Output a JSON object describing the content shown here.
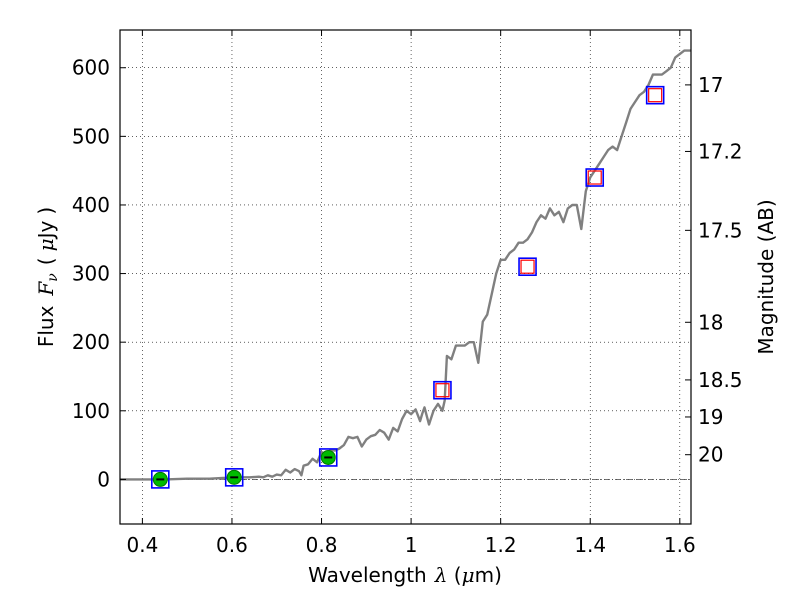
{
  "chart_data": {
    "type": "line",
    "xlabel": {
      "prefix": "Wavelength",
      "symbol": "λ",
      "open": " (",
      "unit": "μ",
      "unit_rest": "m)"
    },
    "ylabel": {
      "prefix": "Flux",
      "symbol": "F",
      "sub": "ν",
      "open": "(",
      "unit": "μ",
      "unit_rest": "Jy",
      "close": ")"
    },
    "y2label": "Magnitude (AB)",
    "xlim": [
      0.35,
      1.625
    ],
    "ylim": [
      -65,
      655
    ],
    "x_ticks": [
      0.4,
      0.6,
      0.8,
      1.0,
      1.2,
      1.4,
      1.6
    ],
    "x_tick_labels": [
      "0.4",
      "0.6",
      "0.8",
      "1",
      "1.2",
      "1.4",
      "1.6"
    ],
    "y_ticks": [
      0,
      100,
      200,
      300,
      400,
      500,
      600
    ],
    "y_tick_labels": [
      "0",
      "100",
      "200",
      "300",
      "400",
      "500",
      "600"
    ],
    "mag_ticks": [
      {
        "label": "17",
        "flux": 575
      },
      {
        "label": "17.2",
        "flux": 478
      },
      {
        "label": "17.5",
        "flux": 363
      },
      {
        "label": "18",
        "flux": 229
      },
      {
        "label": "18.5",
        "flux": 145
      },
      {
        "label": "19",
        "flux": 91
      },
      {
        "label": "20",
        "flux": 36
      }
    ],
    "grid": true,
    "zero_line": true,
    "series": [
      {
        "name": "spectrum",
        "color": "#808080",
        "x": [
          0.35,
          0.4,
          0.45,
          0.5,
          0.55,
          0.58,
          0.6,
          0.62,
          0.64,
          0.66,
          0.67,
          0.68,
          0.69,
          0.7,
          0.71,
          0.72,
          0.73,
          0.74,
          0.75,
          0.755,
          0.76,
          0.77,
          0.78,
          0.79,
          0.8,
          0.81,
          0.82,
          0.83,
          0.84,
          0.85,
          0.86,
          0.87,
          0.88,
          0.89,
          0.9,
          0.91,
          0.92,
          0.93,
          0.94,
          0.95,
          0.96,
          0.97,
          0.98,
          0.99,
          1.0,
          1.01,
          1.02,
          1.025,
          1.03,
          1.04,
          1.05,
          1.06,
          1.07,
          1.075,
          1.08,
          1.09,
          1.1,
          1.11,
          1.12,
          1.13,
          1.14,
          1.15,
          1.16,
          1.17,
          1.18,
          1.19,
          1.2,
          1.21,
          1.22,
          1.23,
          1.24,
          1.25,
          1.26,
          1.27,
          1.28,
          1.29,
          1.3,
          1.31,
          1.32,
          1.33,
          1.34,
          1.35,
          1.36,
          1.37,
          1.38,
          1.39,
          1.4,
          1.41,
          1.42,
          1.43,
          1.44,
          1.45,
          1.46,
          1.47,
          1.48,
          1.49,
          1.5,
          1.51,
          1.52,
          1.53,
          1.54,
          1.55,
          1.56,
          1.57,
          1.58,
          1.59,
          1.6,
          1.61,
          1.625
        ],
        "values": [
          0,
          0,
          0,
          1,
          1,
          2,
          2,
          3,
          3,
          4,
          3,
          6,
          4,
          7,
          6,
          14,
          10,
          15,
          12,
          6,
          20,
          22,
          30,
          25,
          40,
          36,
          43,
          42,
          45,
          50,
          62,
          60,
          62,
          48,
          58,
          63,
          65,
          72,
          68,
          58,
          75,
          70,
          88,
          100,
          95,
          102,
          85,
          96,
          105,
          80,
          100,
          110,
          100,
          115,
          180,
          175,
          195,
          195,
          195,
          200,
          200,
          170,
          230,
          240,
          270,
          300,
          320,
          320,
          330,
          335,
          345,
          345,
          350,
          360,
          375,
          385,
          380,
          395,
          385,
          390,
          375,
          395,
          400,
          400,
          365,
          420,
          440,
          450,
          460,
          470,
          480,
          485,
          480,
          500,
          520,
          540,
          550,
          560,
          565,
          575,
          590,
          590,
          590,
          595,
          600,
          615,
          620,
          625,
          625
        ]
      },
      {
        "name": "green points",
        "color": "#00bb00",
        "x": [
          0.44,
          0.605,
          0.815
        ],
        "values": [
          0,
          3,
          32
        ]
      },
      {
        "name": "red squares",
        "color": "#ff0000",
        "x": [
          1.07,
          1.26,
          1.41,
          1.545
        ],
        "values": [
          130,
          310,
          440,
          560
        ]
      },
      {
        "name": "blue squares",
        "color": "#0000ff",
        "x": [
          0.44,
          0.605,
          0.815,
          1.07,
          1.26,
          1.41,
          1.545
        ],
        "values": [
          0,
          3,
          32,
          130,
          310,
          440,
          560
        ]
      }
    ]
  }
}
